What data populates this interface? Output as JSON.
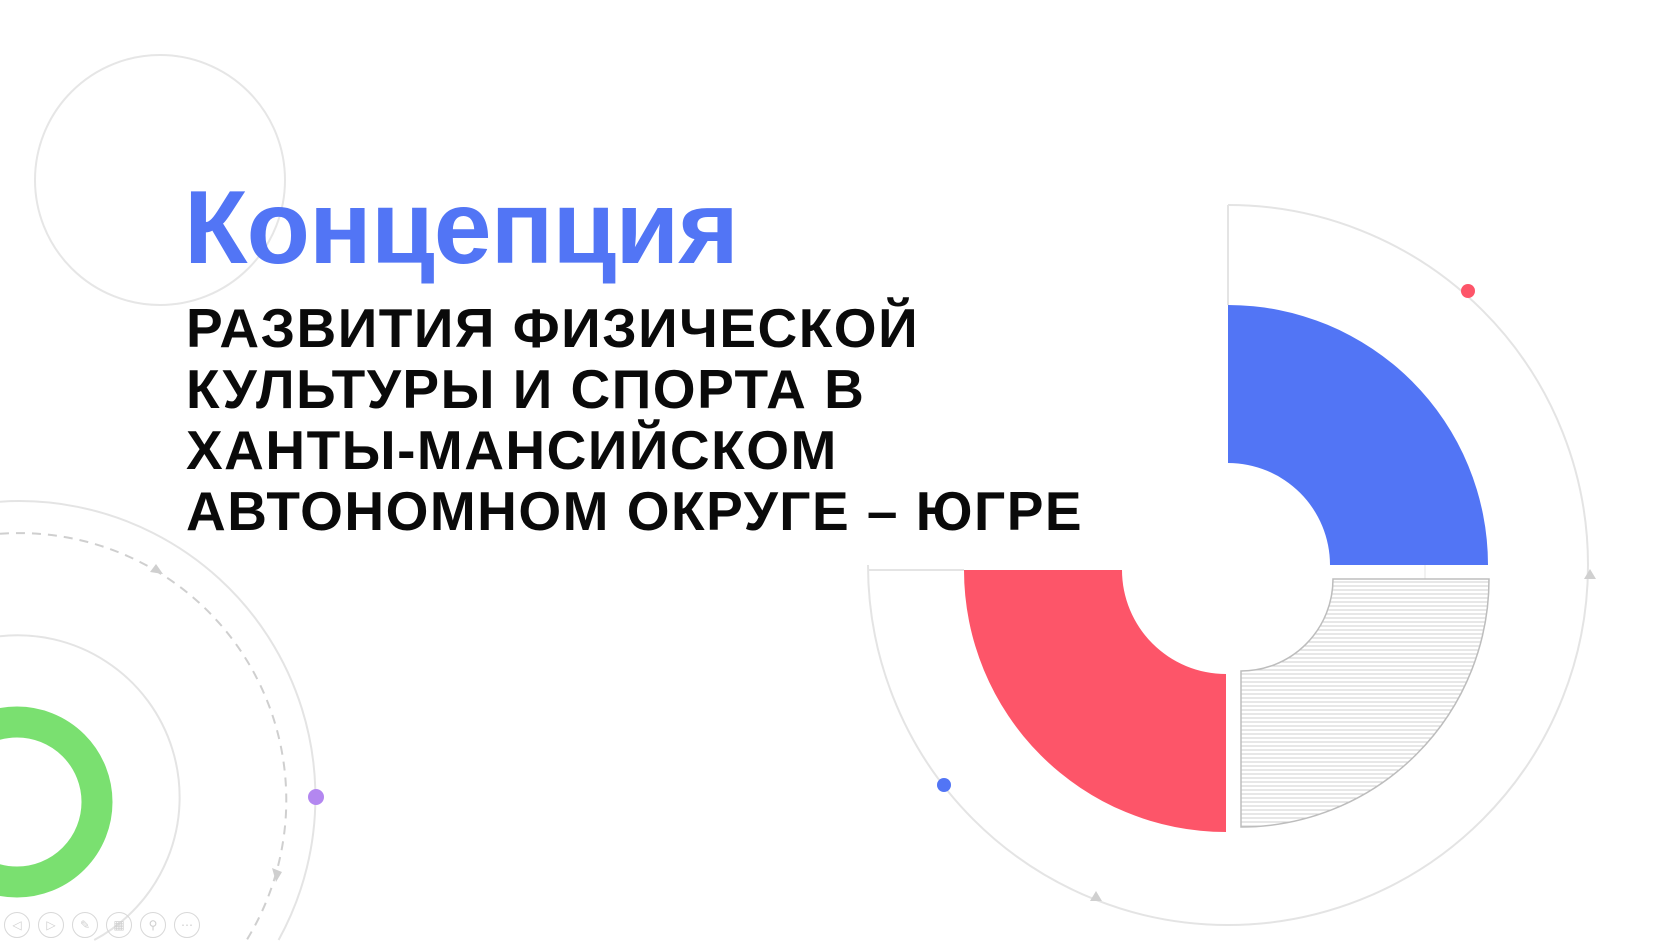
{
  "slide": {
    "title": "Концепция",
    "subtitle_lines": [
      "РАЗВИТИЯ ФИЗИЧЕСКОЙ",
      "КУЛЬТУРЫ И СПОРТА В",
      "ХАНТЫ-МАНСИЙСКОМ",
      "АВТОНОМНОМ ОКРУГЕ – ЮГРЕ"
    ]
  },
  "colors": {
    "accent_blue": "#5275f5",
    "accent_red": "#fd5569",
    "accent_green": "#7ae070",
    "accent_purple": "#b387f0",
    "line_gray": "#e2e2e2"
  },
  "toolbar": {
    "buttons": [
      {
        "icon": "previous-slide-icon",
        "glyph": "◁"
      },
      {
        "icon": "next-slide-icon",
        "glyph": "▷"
      },
      {
        "icon": "pen-icon",
        "glyph": "✎"
      },
      {
        "icon": "slides-grid-icon",
        "glyph": "▦"
      },
      {
        "icon": "zoom-icon",
        "glyph": "⚲"
      },
      {
        "icon": "more-options-icon",
        "glyph": "⋯"
      }
    ]
  }
}
